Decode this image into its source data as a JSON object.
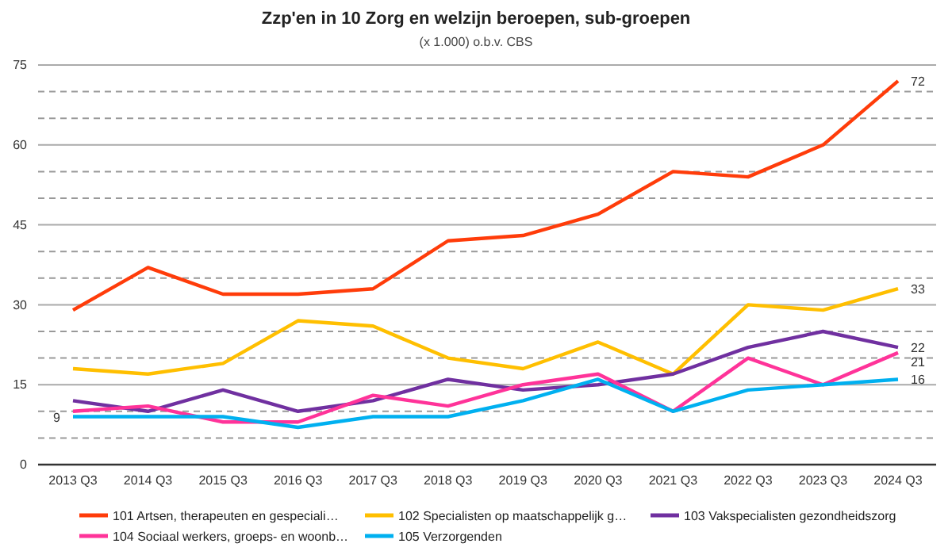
{
  "chart_data": {
    "type": "line",
    "title": "Zzp'en in 10 Zorg en welzijn beroepen, sub-groepen",
    "subtitle": "(x 1.000) o.b.v. CBS",
    "categories": [
      "2013 Q3",
      "2014 Q3",
      "2015 Q3",
      "2016 Q3",
      "2017 Q3",
      "2018 Q3",
      "2019 Q3",
      "2020 Q3",
      "2021 Q3",
      "2022 Q3",
      "2023 Q3",
      "2024 Q3"
    ],
    "series": [
      {
        "name": "101 Artsen, therapeuten en gespeciali…",
        "color": "#ff3c0a",
        "values": [
          29,
          37,
          32,
          32,
          33,
          42,
          43,
          47,
          55,
          54,
          60,
          72
        ],
        "value_labels": [
          null,
          null,
          null,
          null,
          null,
          null,
          null,
          null,
          null,
          null,
          null,
          "72"
        ]
      },
      {
        "name": "102 Specialisten op maatschappelijk g…",
        "color": "#ffbf00",
        "values": [
          18,
          17,
          19,
          27,
          26,
          20,
          18,
          23,
          17,
          30,
          29,
          33
        ],
        "value_labels": [
          null,
          null,
          null,
          null,
          null,
          null,
          null,
          null,
          null,
          null,
          null,
          "33"
        ]
      },
      {
        "name": "103 Vakspecialisten gezondheidszorg",
        "color": "#7030a0",
        "values": [
          12,
          10,
          14,
          10,
          12,
          16,
          14,
          15,
          17,
          22,
          25,
          22
        ],
        "value_labels": [
          null,
          null,
          null,
          null,
          null,
          null,
          null,
          null,
          null,
          null,
          null,
          "22"
        ]
      },
      {
        "name": "104 Sociaal werkers, groeps- en woonb…",
        "color": "#ff3399",
        "values": [
          10,
          11,
          8,
          8,
          13,
          11,
          15,
          17,
          10,
          20,
          15,
          21
        ],
        "value_labels": [
          null,
          null,
          null,
          null,
          null,
          null,
          null,
          null,
          null,
          null,
          null,
          "21"
        ]
      },
      {
        "name": "105 Verzorgenden",
        "color": "#00b0f0",
        "values": [
          9,
          9,
          9,
          7,
          9,
          9,
          12,
          16,
          10,
          14,
          15,
          16
        ],
        "value_labels": [
          "9",
          null,
          null,
          null,
          null,
          null,
          null,
          null,
          null,
          null,
          null,
          "16"
        ]
      }
    ],
    "ylim": [
      0,
      75
    ],
    "yticks": [
      0,
      {
        "value": 5,
        "label": null
      },
      {
        "value": 10,
        "label": null
      },
      15,
      {
        "value": 20,
        "label": null
      },
      {
        "value": 25,
        "label": null
      },
      30,
      {
        "value": 35,
        "label": null
      },
      {
        "value": 40,
        "label": null
      },
      45,
      {
        "value": 50,
        "label": null
      },
      {
        "value": 55,
        "label": null
      },
      60,
      {
        "value": 65,
        "label": null
      },
      {
        "value": 70,
        "label": null
      },
      75
    ],
    "grid": "y",
    "legend": "bottom",
    "marker": "none",
    "line_style": "solid"
  }
}
